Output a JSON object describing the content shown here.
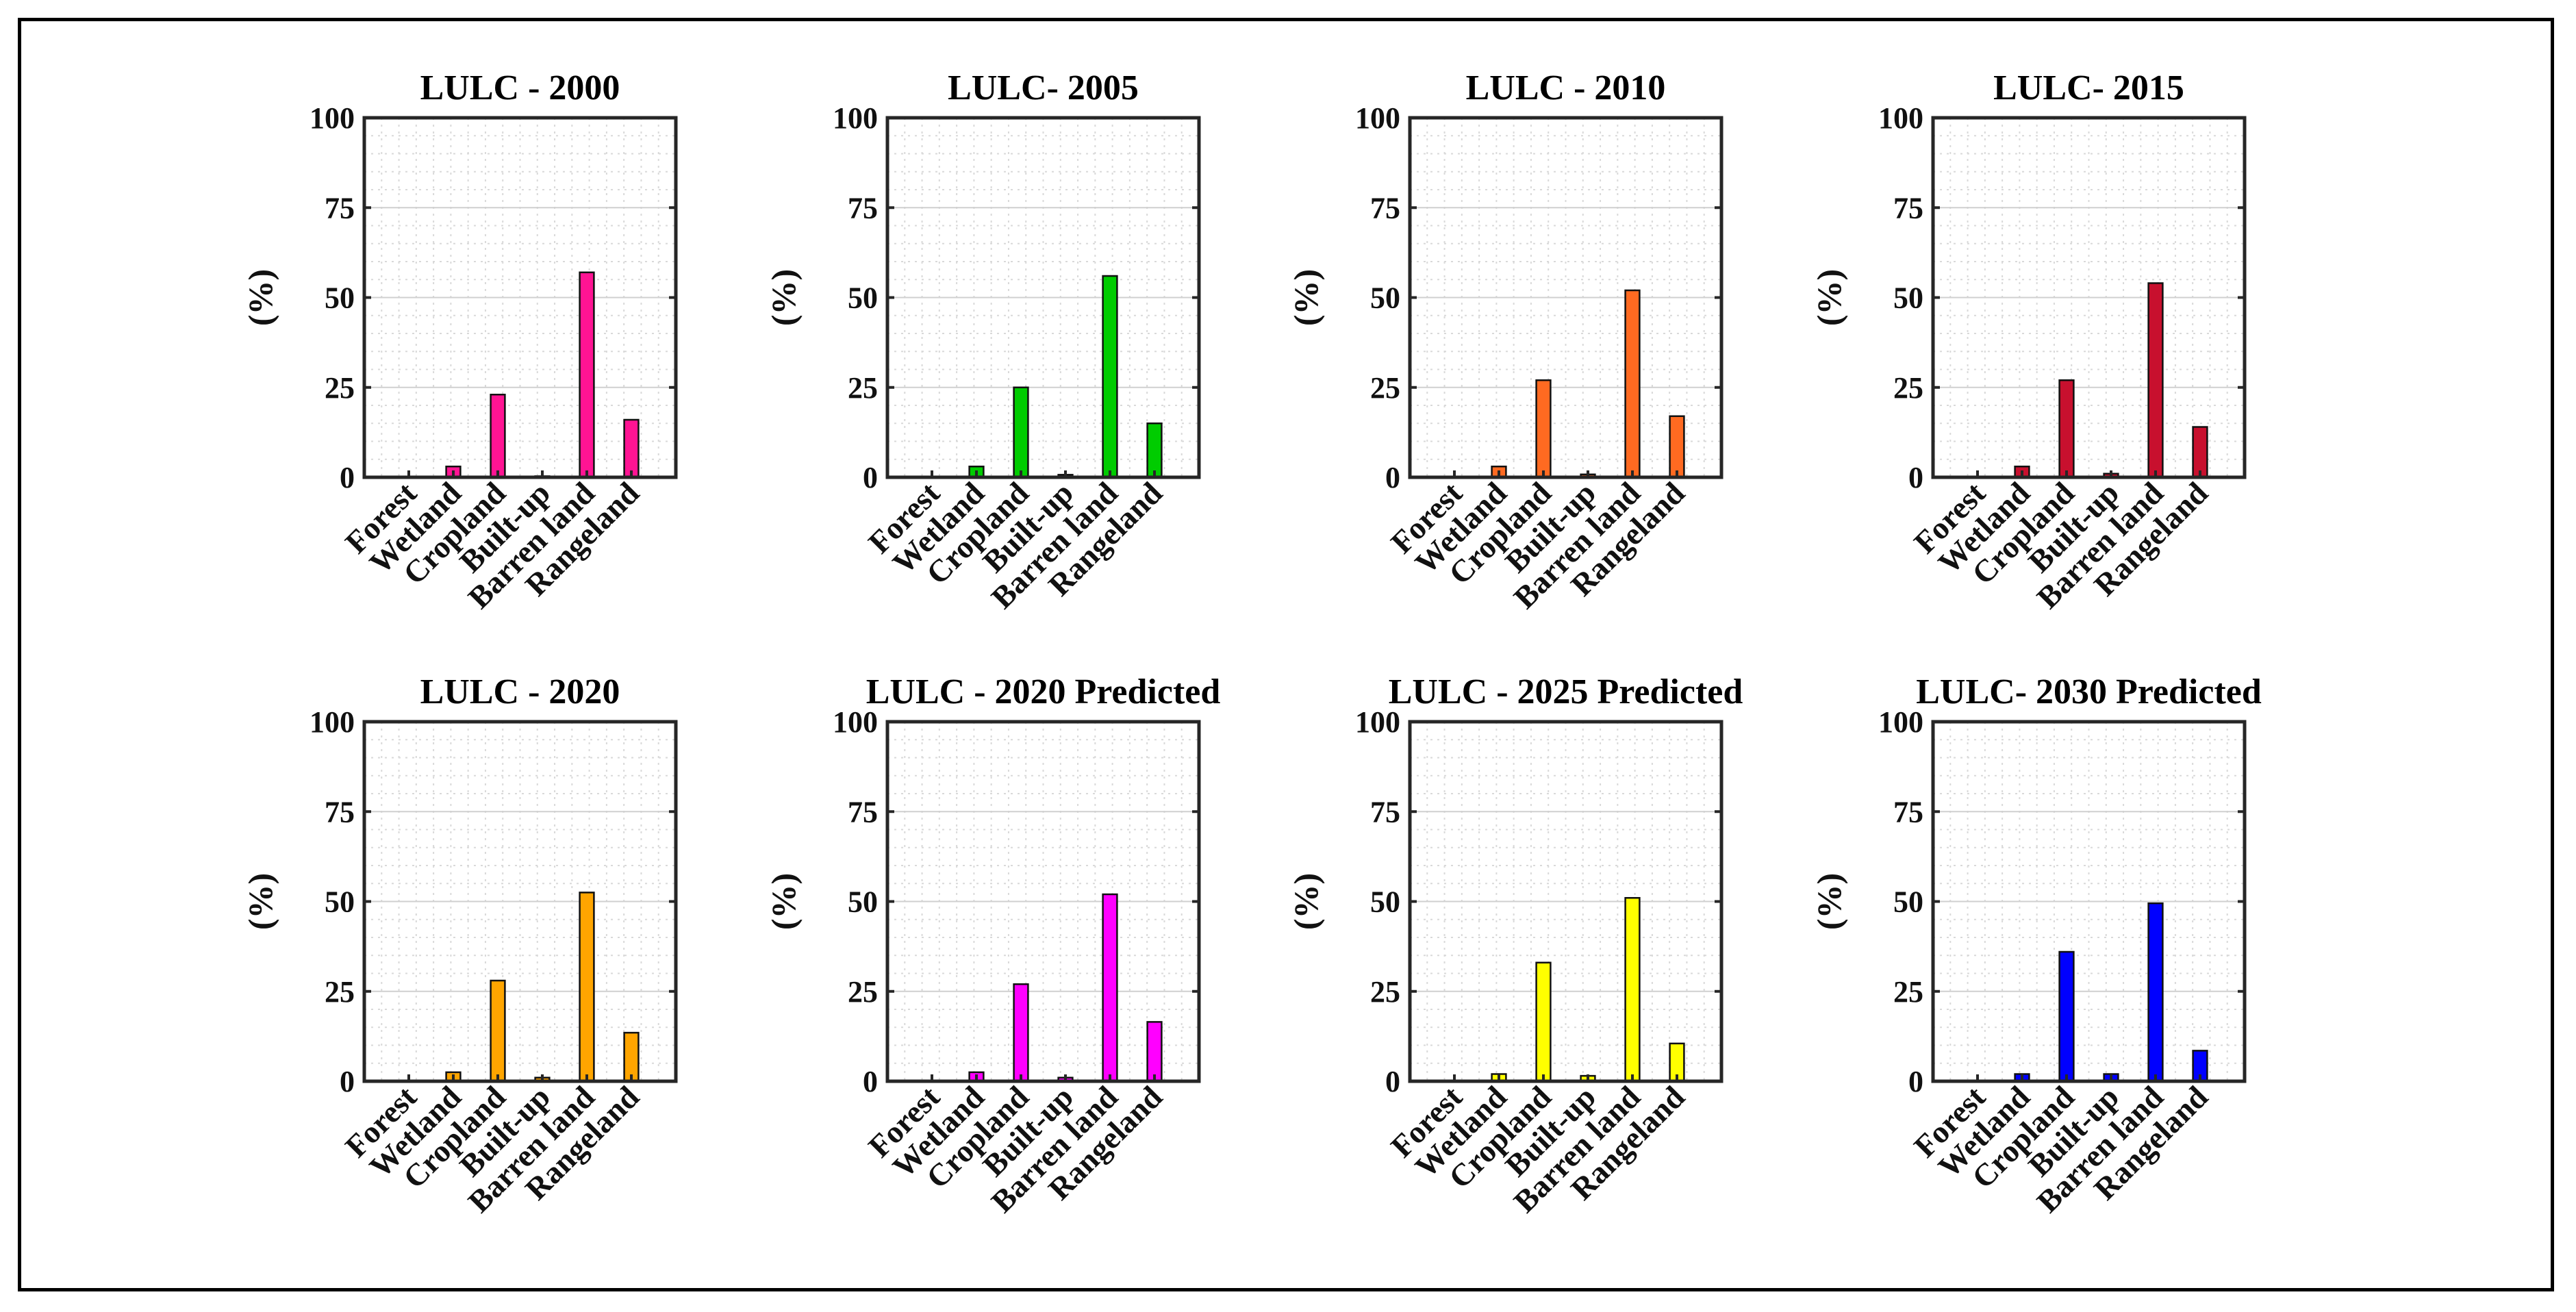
{
  "chart_data": [
    {
      "type": "bar",
      "title": "LULC - 2000",
      "ylabel": "(%)",
      "xlabel": "",
      "ylim": [
        0,
        100
      ],
      "yticks": [
        0,
        25,
        50,
        75,
        100
      ],
      "grid": true,
      "bar_color": "#ff1493",
      "categories": [
        "Forest",
        "Wetland",
        "Cropland",
        "Built-up",
        "Barren land",
        "Rangeland"
      ],
      "values": [
        0,
        3,
        23,
        0.3,
        57,
        16
      ]
    },
    {
      "type": "bar",
      "title": "LULC- 2005",
      "ylabel": "(%)",
      "xlabel": "",
      "ylim": [
        0,
        100
      ],
      "yticks": [
        0,
        25,
        50,
        75,
        100
      ],
      "grid": true,
      "bar_color": "#00cc00",
      "categories": [
        "Forest",
        "Wetland",
        "Cropland",
        "Built-up",
        "Barren land",
        "Rangeland"
      ],
      "values": [
        0,
        3,
        25,
        0.7,
        56,
        15
      ]
    },
    {
      "type": "bar",
      "title": "LULC - 2010",
      "ylabel": "(%)",
      "xlabel": "",
      "ylim": [
        0,
        100
      ],
      "yticks": [
        0,
        25,
        50,
        75,
        100
      ],
      "grid": true,
      "bar_color": "#ff6a21",
      "categories": [
        "Forest",
        "Wetland",
        "Cropland",
        "Built-up",
        "Barren land",
        "Rangeland"
      ],
      "values": [
        0,
        3,
        27,
        0.8,
        52,
        17
      ]
    },
    {
      "type": "bar",
      "title": "LULC- 2015",
      "ylabel": "(%)",
      "xlabel": "",
      "ylim": [
        0,
        100
      ],
      "yticks": [
        0,
        25,
        50,
        75,
        100
      ],
      "grid": true,
      "bar_color": "#c8102e",
      "categories": [
        "Forest",
        "Wetland",
        "Cropland",
        "Built-up",
        "Barren land",
        "Rangeland"
      ],
      "values": [
        0,
        3,
        27,
        1,
        54,
        14
      ]
    },
    {
      "type": "bar",
      "title": "LULC - 2020",
      "ylabel": "(%)",
      "xlabel": "",
      "ylim": [
        0,
        100
      ],
      "yticks": [
        0,
        25,
        50,
        75,
        100
      ],
      "grid": true,
      "bar_color": "#ffa500",
      "categories": [
        "Forest",
        "Wetland",
        "Cropland",
        "Built-up",
        "Barren land",
        "Rangeland"
      ],
      "values": [
        0,
        2.5,
        28,
        1,
        52.5,
        13.5
      ]
    },
    {
      "type": "bar",
      "title": "LULC - 2020 Predicted",
      "ylabel": "(%)",
      "xlabel": "",
      "ylim": [
        0,
        100
      ],
      "yticks": [
        0,
        25,
        50,
        75,
        100
      ],
      "grid": true,
      "bar_color": "#ff00ff",
      "categories": [
        "Forest",
        "Wetland",
        "Cropland",
        "Built-up",
        "Barren land",
        "Rangeland"
      ],
      "values": [
        0,
        2.5,
        27,
        1,
        52,
        16.5
      ]
    },
    {
      "type": "bar",
      "title": "LULC - 2025 Predicted",
      "ylabel": "(%)",
      "xlabel": "",
      "ylim": [
        0,
        100
      ],
      "yticks": [
        0,
        25,
        50,
        75,
        100
      ],
      "grid": true,
      "bar_color": "#ffff00",
      "categories": [
        "Forest",
        "Wetland",
        "Cropland",
        "Built-up",
        "Barren land",
        "Rangeland"
      ],
      "values": [
        0,
        2,
        33,
        1.5,
        51,
        10.5
      ]
    },
    {
      "type": "bar",
      "title": "LULC- 2030 Predicted",
      "ylabel": "(%)",
      "xlabel": "",
      "ylim": [
        0,
        100
      ],
      "yticks": [
        0,
        25,
        50,
        75,
        100
      ],
      "grid": true,
      "bar_color": "#0000ff",
      "categories": [
        "Forest",
        "Wetland",
        "Cropland",
        "Built-up",
        "Barren land",
        "Rangeland"
      ],
      "values": [
        0,
        2,
        36,
        2,
        49.5,
        8.5
      ]
    }
  ]
}
